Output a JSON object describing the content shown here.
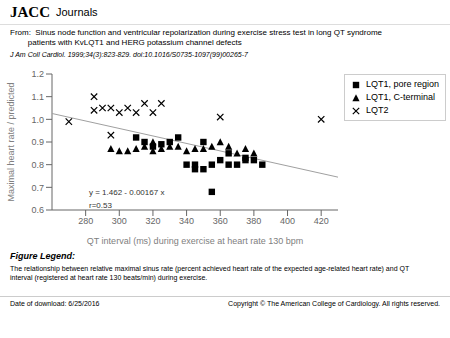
{
  "chart_data": {
    "type": "scatter",
    "title": "From:  Sinus node function and ventricular repolarization during exercise stress test in long QT syndrome\n        patients with KvLQT1 and HERG potassium channel defects",
    "subtitle": "J Am Coll Cardiol. 1999;34(3):823-829. doi:10.1016/S0735-1097(99)00265-7",
    "x_label": "QT interval (ms) during exercise at heart rate 130 bpm",
    "y_label": "Maximal heart rate / predicted",
    "xlim": [
      260,
      430
    ],
    "ylim": [
      0.6,
      1.2
    ],
    "xticks": [
      280,
      300,
      320,
      340,
      360,
      380,
      400,
      420
    ],
    "yticks": [
      0.6,
      0.7,
      0.8,
      0.9,
      {
        "value": 1,
        "label": "1.0"
      },
      1.1,
      1.2
    ],
    "grid": false,
    "legend": "upper right",
    "series": [
      {
        "name": "LQT1, pore region",
        "marker": "square",
        "color": "#000000",
        "x": [
          310,
          315,
          320,
          325,
          330,
          335,
          340,
          345,
          345,
          350,
          350,
          355,
          355,
          360,
          365,
          365,
          370,
          375,
          375,
          380,
          385
        ],
        "values": [
          0.92,
          0.9,
          0.88,
          0.89,
          0.9,
          0.92,
          0.8,
          0.8,
          0.78,
          0.9,
          0.78,
          0.8,
          0.68,
          0.82,
          0.8,
          0.85,
          0.8,
          0.82,
          0.83,
          0.82,
          0.8
        ]
      },
      {
        "name": "LQT1, C-terminal",
        "marker": "triangle",
        "color": "#000000",
        "x": [
          295,
          300,
          305,
          310,
          315,
          320,
          320,
          325,
          330,
          335,
          340,
          345,
          350,
          355,
          360,
          365,
          370,
          375,
          380
        ],
        "values": [
          0.87,
          0.86,
          0.86,
          0.87,
          0.88,
          0.9,
          0.86,
          0.87,
          0.88,
          0.88,
          0.86,
          0.87,
          0.87,
          0.88,
          0.9,
          0.88,
          0.85,
          0.87,
          0.85
        ]
      },
      {
        "name": "LQT2",
        "marker": "x",
        "color": "#000000",
        "x": [
          270,
          285,
          285,
          290,
          295,
          295,
          300,
          305,
          310,
          315,
          320,
          325,
          360,
          420
        ],
        "values": [
          0.99,
          1.1,
          1.04,
          1.05,
          0.93,
          1.05,
          1.03,
          1.05,
          1.03,
          1.07,
          1.03,
          1.07,
          1.01,
          1.0
        ]
      },
      {
        "type": "line",
        "color": "#a0a0a0",
        "x": [
          260,
          430
        ],
        "values": [
          1.0258,
          0.7449
        ]
      }
    ],
    "annotations": [
      {
        "text": "y = 1.462 - 0.00167 x",
        "x": 282,
        "y": 0.658
      },
      {
        "text": "r=0.53",
        "x": 282,
        "y": 0.638
      },
      {
        "text": "JACC"
      },
      {
        "text": "Journals"
      },
      {
        "text": "Figure Legend:"
      },
      {
        "text": "The relationship between relative maximal sinus rate (percent achieved heart rate of the expected age-related heart rate) and QT\ninterval (registered at heart rate 130 beats/min) during exercise."
      },
      {
        "text": "Date of download: 6/25/2016"
      },
      {
        "text": "Copyright © The American College of Cardiology. All rights reserved."
      }
    ]
  }
}
